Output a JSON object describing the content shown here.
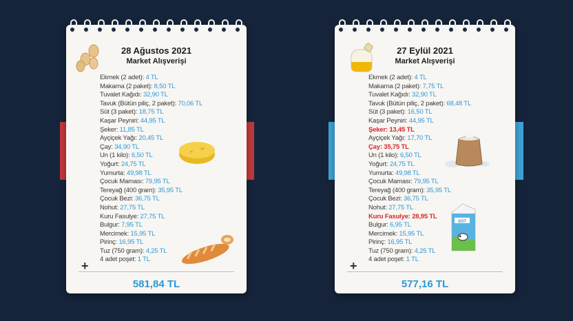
{
  "left_note": {
    "date": "28 Ağustos 2021",
    "subtitle": "Market Alışverişi",
    "total": "581,84 TL",
    "items": [
      {
        "name": "Ekmek (2 adet):",
        "price": "4 TL"
      },
      {
        "name": "Makarna (2 paket):",
        "price": "8,50 TL"
      },
      {
        "name": "Tuvalet Kağıdı:",
        "price": "32,90 TL"
      },
      {
        "name": "Tavuk (Bütün piliç, 2 paket):",
        "price": "70,06 TL"
      },
      {
        "name": "Süt (3 paket):",
        "price": "18,75 TL"
      },
      {
        "name": "Kaşar Peyniri:",
        "price": "44,95 TL"
      },
      {
        "name": "Şeker:",
        "price": "11,85 TL"
      },
      {
        "name": "Ayçiçek Yağı:",
        "price": "20,45 TL"
      },
      {
        "name": "Çay:",
        "price": "34,90 TL"
      },
      {
        "name": "Un (1 kilo):",
        "price": "6,50 TL"
      },
      {
        "name": "Yoğurt:",
        "price": "24,75 TL"
      },
      {
        "name": "Yumurta:",
        "price": "49,98 TL"
      },
      {
        "name": "Çocuk Maması:",
        "price": "79,95 TL"
      },
      {
        "name": "Tereyağ (400 gram):",
        "price": "35,95 TL"
      },
      {
        "name": "Çocuk Bezi:",
        "price": "36,75 TL"
      },
      {
        "name": "Nohut:",
        "price": "27,75 TL"
      },
      {
        "name": "Kuru Fasulye:",
        "price": "27,75 TL"
      },
      {
        "name": "Bulgur:",
        "price": "7,95 TL"
      },
      {
        "name": "Mercimek:",
        "price": "15,95 TL"
      },
      {
        "name": "Pirinç:",
        "price": "16,95 TL"
      },
      {
        "name": "Tuz (750 gram):",
        "price": "4,25 TL"
      },
      {
        "name": "4 adet poşet:",
        "price": "1 TL"
      }
    ]
  },
  "right_note": {
    "date": "27 Eylül 2021",
    "subtitle": "Market Alışverişi",
    "total": "577,16 TL",
    "milk_label": "SÜT",
    "items": [
      {
        "name": "Ekmek (2 adet):",
        "price": "4 TL"
      },
      {
        "name": "Makarna (2 paket):",
        "price": "7,75 TL"
      },
      {
        "name": "Tuvalet Kağıdı:",
        "price": "32,90 TL"
      },
      {
        "name": "Tavuk (Bütün piliç, 2 paket):",
        "price": "68,48 TL"
      },
      {
        "name": "Süt (3 paket):",
        "price": "16,50 TL"
      },
      {
        "name": "Kaşar Peyniri:",
        "price": "44,95 TL"
      },
      {
        "name": "Şeker:",
        "price": "13,45 TL",
        "changed": true
      },
      {
        "name": "Ayçiçek Yağı:",
        "price": "17,70 TL"
      },
      {
        "name": "Çay:",
        "price": "35,75 TL",
        "changed": true
      },
      {
        "name": "Un (1 kilo):",
        "price": "6,50 TL"
      },
      {
        "name": "Yoğurt:",
        "price": "24,75 TL"
      },
      {
        "name": "Yumurta:",
        "price": "49,98 TL"
      },
      {
        "name": "Çocuk Maması:",
        "price": "79,95 TL"
      },
      {
        "name": "Tereyağ (400 gram):",
        "price": "35,95 TL"
      },
      {
        "name": "Çocuk Bezi:",
        "price": "36,75 TL"
      },
      {
        "name": "Nohut:",
        "price": "27,75 TL"
      },
      {
        "name": "Kuru Fasulye:",
        "price": "28,95 TL",
        "changed": true
      },
      {
        "name": "Bulgur:",
        "price": "6,95 TL"
      },
      {
        "name": "Mercimek:",
        "price": "15,95 TL"
      },
      {
        "name": "Pirinç:",
        "price": "16,95 TL"
      },
      {
        "name": "Tuz (750 gram):",
        "price": "4,25 TL"
      },
      {
        "name": "4 adet poşet:",
        "price": "1 TL"
      }
    ]
  },
  "icons": {
    "left": [
      "eggs-icon",
      "cheese-icon",
      "bread-icon"
    ],
    "right": [
      "oil-bottle-icon",
      "flour-sack-icon",
      "milk-carton-icon"
    ]
  },
  "colors": {
    "background": "#15243a",
    "price": "#2d98d6",
    "changed": "#d8262a",
    "tab_left": "#c0393b",
    "tab_right": "#3fa2d6"
  }
}
